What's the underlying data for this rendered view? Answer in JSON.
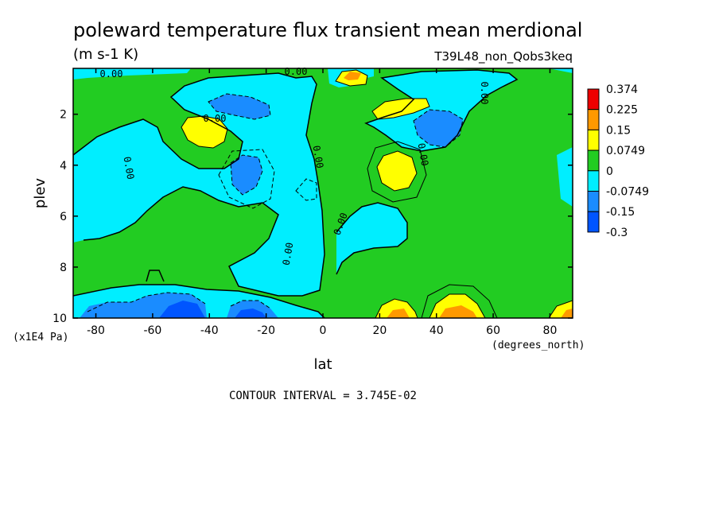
{
  "chart_data": {
    "type": "heatmap",
    "title": "poleward temperature flux transient mean merdional",
    "units": "(m s-1 K)",
    "run_label": "T39L48_non_Qobs3keq",
    "xlabel": "lat",
    "ylabel": "plev",
    "x_units": "(degrees_north)",
    "y_units": "(x1E4 Pa)",
    "xlim": [
      -88,
      88
    ],
    "ylim": [
      0.2,
      10
    ],
    "y_reversed": true,
    "x_ticks": [
      -80,
      -60,
      -40,
      -20,
      0,
      20,
      40,
      60,
      80
    ],
    "x_tick_labels": [
      "-80",
      "-60",
      "-40",
      "-20",
      "0",
      "20",
      "40",
      "60",
      "80"
    ],
    "y_ticks": [
      2,
      4,
      6,
      8,
      10
    ],
    "y_tick_labels": [
      "2",
      "4",
      "6",
      "8",
      "10"
    ],
    "contour_interval_text": "CONTOUR INTERVAL = 3.745E-02",
    "contour_label": "0.00",
    "colorbar": {
      "levels": [
        "0.374",
        "0.225",
        "0.15",
        "0.0749",
        "0",
        "-0.0749",
        "-0.15",
        "-0.3"
      ],
      "colors": [
        "#ee0000",
        "#ff9900",
        "#ffff00",
        "#22cc22",
        "#00eeff",
        "#1a8cff",
        "#0055ff"
      ]
    },
    "field_features": [
      {
        "lat": -45,
        "plev": 2.5,
        "sign": "positive",
        "peak_class": "0.0749 to 0.15"
      },
      {
        "lat": -30,
        "plev": 1.7,
        "sign": "negative",
        "peak_class": "-0.0749 to -0.15"
      },
      {
        "lat": -30,
        "plev": 4.2,
        "sign": "negative",
        "peak_class": "-0.0749 to -0.15"
      },
      {
        "lat": -48,
        "plev": 9.8,
        "sign": "negative",
        "peak_class": "-0.15 to -0.3"
      },
      {
        "lat": -28,
        "plev": 9.8,
        "sign": "negative",
        "peak_class": "-0.15 to -0.3"
      },
      {
        "lat": 8,
        "plev": 0.4,
        "sign": "positive",
        "peak_class": "0.15 to 0.225"
      },
      {
        "lat": 28,
        "plev": 1.7,
        "sign": "positive",
        "peak_class": "0.0749 to 0.15"
      },
      {
        "lat": 40,
        "plev": 2.5,
        "sign": "negative",
        "peak_class": "-0.0749 to -0.15"
      },
      {
        "lat": 25,
        "plev": 4.0,
        "sign": "positive",
        "peak_class": "0.0749 to 0.15"
      },
      {
        "lat": 25,
        "plev": 9.9,
        "sign": "positive",
        "peak_class": "0.15 to 0.225"
      },
      {
        "lat": 45,
        "plev": 9.8,
        "sign": "positive",
        "peak_class": "0.15 to 0.225"
      },
      {
        "lat": 86,
        "plev": 9.8,
        "sign": "positive",
        "peak_class": "0.15 to 0.225"
      }
    ]
  }
}
